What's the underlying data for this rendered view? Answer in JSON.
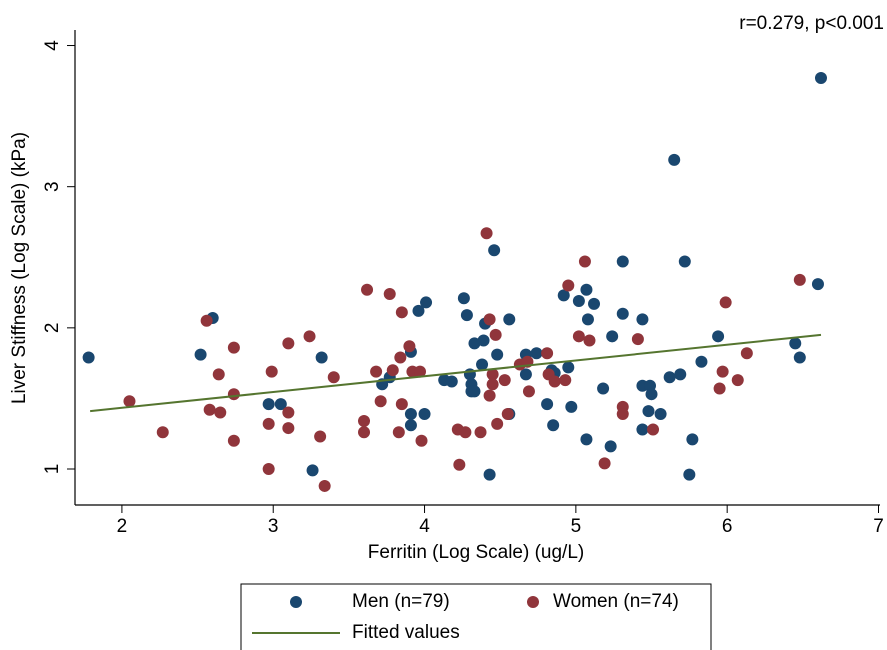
{
  "chart_data": {
    "type": "scatter",
    "annotation": "r=0.279, p<0.001",
    "xlabel": "Ferritin (Log Scale) (ug/L)",
    "ylabel": "Liver Stiffness (Log Scale) (kPa)",
    "xlim": [
      1.69,
      7.01
    ],
    "ylim": [
      0.745,
      4.11
    ],
    "xticks": [
      2,
      3,
      4,
      5,
      6,
      7
    ],
    "yticks": [
      1,
      2,
      3,
      4
    ],
    "grid": false,
    "series": [
      {
        "name": "Men (n=79)",
        "color": "#1a476f",
        "marker": "circle",
        "x": [
          1.78,
          2.52,
          2.6,
          2.97,
          3.05,
          3.26,
          3.32,
          3.72,
          3.77,
          3.91,
          3.91,
          3.91,
          3.96,
          4.01,
          4.0,
          4.13,
          4.18,
          4.26,
          4.28,
          4.3,
          4.31,
          4.31,
          4.33,
          4.33,
          4.38,
          4.39,
          4.4,
          4.43,
          4.46,
          4.48,
          4.56,
          4.56,
          4.67,
          4.67,
          4.74,
          4.81,
          4.84,
          4.86,
          4.85,
          4.92,
          4.95,
          4.97,
          5.02,
          5.07,
          5.07,
          5.08,
          5.12,
          5.18,
          5.23,
          5.24,
          5.31,
          5.31,
          5.44,
          5.44,
          5.48,
          5.49,
          5.5,
          5.44,
          5.56,
          5.62,
          5.65,
          5.69,
          5.72,
          5.75,
          5.77,
          5.83,
          5.94,
          6.45,
          6.48,
          6.6,
          6.62
        ],
        "values": [
          1.79,
          1.81,
          2.07,
          1.46,
          1.46,
          0.99,
          1.79,
          1.6,
          1.65,
          1.83,
          1.39,
          1.31,
          2.12,
          2.18,
          1.39,
          1.63,
          1.62,
          2.21,
          2.09,
          1.67,
          1.6,
          1.55,
          1.89,
          1.55,
          1.74,
          1.91,
          2.03,
          0.96,
          2.55,
          1.81,
          1.39,
          2.06,
          1.81,
          1.67,
          1.82,
          1.46,
          1.7,
          1.68,
          1.31,
          2.23,
          1.72,
          1.44,
          2.19,
          2.27,
          1.21,
          2.06,
          2.17,
          1.57,
          1.16,
          1.94,
          2.47,
          2.1,
          2.06,
          1.59,
          1.41,
          1.59,
          1.53,
          1.28,
          1.39,
          1.65,
          3.19,
          1.67,
          2.47,
          0.96,
          1.21,
          1.76,
          1.94,
          1.89,
          1.79,
          2.31,
          3.77
        ]
      },
      {
        "name": "Women (n=74)",
        "color": "#90353b",
        "marker": "circle",
        "x": [
          2.05,
          2.27,
          2.56,
          2.58,
          2.64,
          2.65,
          2.74,
          2.74,
          2.74,
          2.97,
          2.97,
          2.99,
          3.1,
          3.1,
          3.1,
          3.24,
          3.31,
          3.34,
          3.4,
          3.6,
          3.6,
          3.62,
          3.68,
          3.71,
          3.77,
          3.79,
          3.84,
          3.83,
          3.85,
          3.85,
          3.9,
          3.92,
          3.97,
          3.98,
          4.22,
          4.23,
          4.27,
          4.37,
          4.41,
          4.43,
          4.43,
          4.45,
          4.45,
          4.47,
          4.48,
          4.53,
          4.55,
          4.63,
          4.68,
          4.69,
          4.81,
          4.82,
          4.86,
          4.93,
          4.95,
          5.02,
          5.06,
          5.09,
          5.19,
          5.31,
          5.31,
          5.41,
          5.51,
          5.95,
          5.97,
          5.99,
          6.07,
          6.13,
          6.48
        ],
        "values": [
          1.48,
          1.26,
          2.05,
          1.42,
          1.67,
          1.4,
          1.86,
          1.53,
          1.2,
          1.32,
          1.0,
          1.69,
          1.4,
          1.89,
          1.29,
          1.94,
          1.23,
          0.88,
          1.65,
          1.34,
          1.26,
          2.27,
          1.69,
          1.48,
          2.24,
          1.7,
          1.79,
          1.26,
          2.11,
          1.46,
          1.87,
          1.69,
          1.69,
          1.2,
          1.28,
          1.03,
          1.26,
          1.26,
          2.67,
          2.06,
          1.52,
          1.67,
          1.6,
          1.95,
          1.32,
          1.63,
          1.39,
          1.74,
          1.76,
          1.55,
          1.82,
          1.67,
          1.62,
          1.63,
          2.3,
          1.94,
          2.47,
          1.91,
          1.04,
          1.44,
          1.39,
          1.92,
          1.28,
          1.57,
          1.69,
          2.18,
          1.63,
          1.82,
          2.34
        ]
      },
      {
        "name": "Fitted values",
        "color": "#55752f",
        "marker": "line",
        "x": [
          1.79,
          6.62
        ],
        "values": [
          1.41,
          1.95
        ]
      }
    ]
  }
}
